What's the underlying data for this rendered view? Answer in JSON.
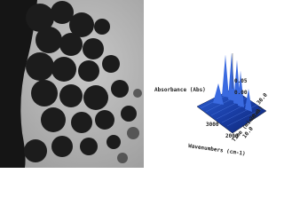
{
  "plot": {
    "z_axis_label": "Absorbance (Abs)",
    "z_ticks": [
      "0.05",
      "0.00"
    ],
    "x_axis_label": "Wavenumbers (cm-1)",
    "x_ticks": [
      "3000",
      "2000"
    ],
    "y_axis_label": "Time (minutes)",
    "y_ticks": [
      "30.0",
      "20.0",
      "10.0"
    ]
  }
}
